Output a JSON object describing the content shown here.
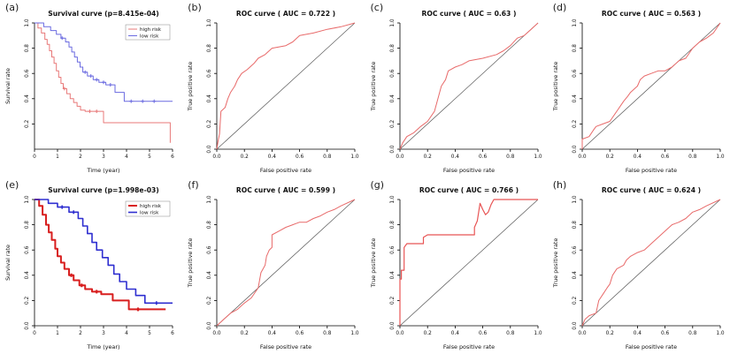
{
  "figure": {
    "background": "#ffffff",
    "diagonal_color": "#555555",
    "axis_color": "#000000"
  },
  "chart_data": [
    {
      "id": "a",
      "panel_label": "(a)",
      "type": "line",
      "subtype": "survival-step",
      "title": "Survival curve (p=8.415e-04)",
      "p_value": "8.415e-04",
      "xlabel": "Time (year)",
      "ylabel": "Survival rate",
      "xlim": [
        0,
        6
      ],
      "ylim": [
        0,
        1.0
      ],
      "step": true,
      "diagonal": false,
      "xticks": [
        0,
        1,
        2,
        3,
        4,
        5,
        6
      ],
      "xtick_labels": [
        "0",
        "1",
        "2",
        "3",
        "4",
        "5",
        "6"
      ],
      "yticks": [
        0.2,
        0.4,
        0.6,
        0.8,
        1.0
      ],
      "ytick_labels": [
        "0.2",
        "0.4",
        "0.6",
        "0.8",
        "1.0"
      ],
      "legend": [
        {
          "label": "high risk",
          "color": "#e87878",
          "width": 1
        },
        {
          "label": "low risk",
          "color": "#6a6ae0",
          "width": 1
        }
      ],
      "series": [
        {
          "name": "high risk",
          "color": "#e87878",
          "width": 1,
          "x": [
            0,
            0.15,
            0.3,
            0.45,
            0.55,
            0.65,
            0.75,
            0.85,
            0.95,
            1.05,
            1.15,
            1.25,
            1.4,
            1.55,
            1.7,
            1.85,
            2.0,
            2.2,
            3.0,
            5.5,
            5.9
          ],
          "y": [
            1.0,
            0.96,
            0.92,
            0.87,
            0.83,
            0.78,
            0.73,
            0.68,
            0.62,
            0.57,
            0.52,
            0.48,
            0.44,
            0.4,
            0.37,
            0.34,
            0.31,
            0.3,
            0.21,
            0.21,
            0.05
          ],
          "censors": [
            [
              2.4,
              0.3
            ],
            [
              2.7,
              0.3
            ],
            [
              1.3,
              0.48
            ]
          ]
        },
        {
          "name": "low risk",
          "color": "#6a6ae0",
          "width": 1,
          "x": [
            0,
            0.4,
            0.7,
            0.95,
            1.15,
            1.35,
            1.5,
            1.62,
            1.74,
            1.86,
            1.98,
            2.1,
            2.3,
            2.55,
            2.8,
            3.1,
            3.5,
            3.9,
            6.0
          ],
          "y": [
            1.0,
            0.97,
            0.94,
            0.91,
            0.88,
            0.85,
            0.81,
            0.77,
            0.73,
            0.69,
            0.65,
            0.61,
            0.58,
            0.55,
            0.53,
            0.51,
            0.45,
            0.38,
            0.38
          ],
          "censors": [
            [
              1.2,
              0.88
            ],
            [
              2.2,
              0.61
            ],
            [
              2.45,
              0.58
            ],
            [
              2.7,
              0.55
            ],
            [
              3.0,
              0.53
            ],
            [
              3.3,
              0.51
            ],
            [
              4.2,
              0.38
            ],
            [
              4.7,
              0.38
            ],
            [
              5.2,
              0.38
            ]
          ]
        }
      ]
    },
    {
      "id": "b",
      "panel_label": "(b)",
      "type": "line",
      "subtype": "roc",
      "title": "ROC curve ( AUC =  0.722 )",
      "auc": 0.722,
      "xlabel": "False positive rate",
      "ylabel": "True positive rate",
      "xlim": [
        0,
        1
      ],
      "ylim": [
        0,
        1
      ],
      "step": false,
      "diagonal": true,
      "xticks": [
        0,
        0.2,
        0.4,
        0.6,
        0.8,
        1.0
      ],
      "xtick_labels": [
        "0.0",
        "0.2",
        "0.4",
        "0.6",
        "0.8",
        "1.0"
      ],
      "yticks": [
        0,
        0.2,
        0.4,
        0.6,
        0.8,
        1.0
      ],
      "ytick_labels": [
        "0.0",
        "0.2",
        "0.4",
        "0.6",
        "0.8",
        "1.0"
      ],
      "series": [
        {
          "name": "ROC",
          "color": "#e86a6a",
          "width": 1,
          "x": [
            0,
            0.01,
            0.02,
            0.03,
            0.06,
            0.08,
            0.1,
            0.13,
            0.15,
            0.18,
            0.22,
            0.27,
            0.3,
            0.35,
            0.4,
            0.5,
            0.55,
            0.6,
            0.7,
            0.8,
            0.9,
            1.0
          ],
          "y": [
            0,
            0.07,
            0.12,
            0.3,
            0.33,
            0.4,
            0.45,
            0.5,
            0.55,
            0.6,
            0.63,
            0.68,
            0.72,
            0.75,
            0.8,
            0.82,
            0.85,
            0.9,
            0.92,
            0.95,
            0.97,
            1.0
          ]
        }
      ]
    },
    {
      "id": "c",
      "panel_label": "(c)",
      "type": "line",
      "subtype": "roc",
      "title": "ROC curve ( AUC =  0.63 )",
      "auc": 0.63,
      "xlabel": "False positive rate",
      "ylabel": "True positive rate",
      "xlim": [
        0,
        1
      ],
      "ylim": [
        0,
        1
      ],
      "step": false,
      "diagonal": true,
      "xticks": [
        0,
        0.2,
        0.4,
        0.6,
        0.8,
        1.0
      ],
      "xtick_labels": [
        "0.0",
        "0.2",
        "0.4",
        "0.6",
        "0.8",
        "1.0"
      ],
      "yticks": [
        0,
        0.2,
        0.4,
        0.6,
        0.8,
        1.0
      ],
      "ytick_labels": [
        "0.0",
        "0.2",
        "0.4",
        "0.6",
        "0.8",
        "1.0"
      ],
      "series": [
        {
          "name": "ROC",
          "color": "#e86a6a",
          "width": 1,
          "x": [
            0,
            0.02,
            0.05,
            0.1,
            0.15,
            0.2,
            0.25,
            0.28,
            0.3,
            0.33,
            0.35,
            0.4,
            0.45,
            0.5,
            0.6,
            0.7,
            0.75,
            0.8,
            0.85,
            0.9,
            0.95,
            1.0
          ],
          "y": [
            0,
            0.05,
            0.1,
            0.13,
            0.18,
            0.22,
            0.3,
            0.42,
            0.5,
            0.55,
            0.62,
            0.65,
            0.67,
            0.7,
            0.72,
            0.75,
            0.78,
            0.82,
            0.88,
            0.9,
            0.95,
            1.0
          ]
        }
      ]
    },
    {
      "id": "d",
      "panel_label": "(d)",
      "type": "line",
      "subtype": "roc",
      "title": "ROC curve ( AUC =  0.563 )",
      "auc": 0.563,
      "xlabel": "False positive rate",
      "ylabel": "True positive rate",
      "xlim": [
        0,
        1
      ],
      "ylim": [
        0,
        1
      ],
      "step": false,
      "diagonal": true,
      "xticks": [
        0,
        0.2,
        0.4,
        0.6,
        0.8,
        1.0
      ],
      "xtick_labels": [
        "0.0",
        "0.2",
        "0.4",
        "0.6",
        "0.8",
        "1.0"
      ],
      "yticks": [
        0,
        0.2,
        0.4,
        0.6,
        0.8,
        1.0
      ],
      "ytick_labels": [
        "0.0",
        "0.2",
        "0.4",
        "0.6",
        "0.8",
        "1.0"
      ],
      "series": [
        {
          "name": "ROC",
          "color": "#e86a6a",
          "width": 1,
          "x": [
            0,
            0,
            0.05,
            0.08,
            0.1,
            0.15,
            0.2,
            0.25,
            0.3,
            0.33,
            0.35,
            0.4,
            0.42,
            0.45,
            0.5,
            0.55,
            0.6,
            0.65,
            0.7,
            0.75,
            0.8,
            0.85,
            0.9,
            0.95,
            1.0
          ],
          "y": [
            0,
            0.08,
            0.1,
            0.15,
            0.18,
            0.2,
            0.22,
            0.3,
            0.38,
            0.42,
            0.45,
            0.5,
            0.55,
            0.58,
            0.6,
            0.62,
            0.62,
            0.65,
            0.7,
            0.72,
            0.8,
            0.85,
            0.88,
            0.92,
            1.0
          ]
        }
      ]
    },
    {
      "id": "e",
      "panel_label": "(e)",
      "type": "line",
      "subtype": "survival-step",
      "title": "Survival curve (p=1.998e-03)",
      "p_value": "1.998e-03",
      "xlabel": "Time (year)",
      "ylabel": "Survival rate",
      "xlim": [
        0,
        6
      ],
      "ylim": [
        0,
        1.0
      ],
      "step": true,
      "diagonal": false,
      "xticks": [
        0,
        1,
        2,
        3,
        4,
        5,
        6
      ],
      "xtick_labels": [
        "0",
        "1",
        "2",
        "3",
        "4",
        "5",
        "6"
      ],
      "yticks": [
        0,
        0.2,
        0.4,
        0.6,
        0.8,
        1.0
      ],
      "ytick_labels": [
        "0.0",
        "0.2",
        "0.4",
        "0.6",
        "0.8",
        "1.0"
      ],
      "legend": [
        {
          "label": "high risk",
          "color": "#d81f1f",
          "width": 2
        },
        {
          "label": "low risk",
          "color": "#2f2fd0",
          "width": 1.6
        }
      ],
      "series": [
        {
          "name": "high risk",
          "color": "#d81f1f",
          "width": 2,
          "x": [
            0,
            0.2,
            0.35,
            0.5,
            0.62,
            0.75,
            0.9,
            1.0,
            1.15,
            1.3,
            1.5,
            1.7,
            1.95,
            2.2,
            2.5,
            2.9,
            3.4,
            4.1,
            5.7
          ],
          "y": [
            1.0,
            0.95,
            0.88,
            0.8,
            0.74,
            0.68,
            0.61,
            0.55,
            0.5,
            0.45,
            0.4,
            0.36,
            0.32,
            0.29,
            0.27,
            0.25,
            0.2,
            0.13,
            0.13
          ],
          "censors": [
            [
              1.6,
              0.4
            ],
            [
              2.05,
              0.32
            ],
            [
              2.7,
              0.27
            ],
            [
              4.5,
              0.13
            ]
          ]
        },
        {
          "name": "low risk",
          "color": "#2f2fd0",
          "width": 1.6,
          "x": [
            0,
            0.6,
            1.0,
            1.5,
            1.9,
            2.1,
            2.3,
            2.5,
            2.7,
            2.95,
            3.2,
            3.45,
            3.7,
            4.0,
            4.4,
            4.8,
            6.0
          ],
          "y": [
            1.0,
            0.97,
            0.94,
            0.9,
            0.85,
            0.79,
            0.73,
            0.66,
            0.6,
            0.54,
            0.48,
            0.41,
            0.35,
            0.29,
            0.24,
            0.18,
            0.18
          ],
          "censors": [
            [
              1.2,
              0.94
            ],
            [
              1.7,
              0.9
            ],
            [
              5.3,
              0.18
            ]
          ]
        }
      ]
    },
    {
      "id": "f",
      "panel_label": "(f)",
      "type": "line",
      "subtype": "roc",
      "title": "ROC curve ( AUC =  0.599 )",
      "auc": 0.599,
      "xlabel": "False positive rate",
      "ylabel": "True positive rate",
      "xlim": [
        0,
        1
      ],
      "ylim": [
        0,
        1
      ],
      "step": false,
      "diagonal": true,
      "xticks": [
        0,
        0.2,
        0.4,
        0.6,
        0.8,
        1.0
      ],
      "xtick_labels": [
        "0.0",
        "0.2",
        "0.4",
        "0.6",
        "0.8",
        "1.0"
      ],
      "yticks": [
        0,
        0.2,
        0.4,
        0.6,
        0.8,
        1.0
      ],
      "ytick_labels": [
        "0.0",
        "0.2",
        "0.4",
        "0.6",
        "0.8",
        "1.0"
      ],
      "series": [
        {
          "name": "ROC",
          "color": "#e86a6a",
          "width": 1,
          "x": [
            0,
            0.05,
            0.1,
            0.15,
            0.2,
            0.25,
            0.3,
            0.32,
            0.35,
            0.36,
            0.38,
            0.4,
            0.4,
            0.45,
            0.5,
            0.55,
            0.6,
            0.65,
            0.7,
            0.75,
            0.8,
            0.85,
            0.9,
            1.0
          ],
          "y": [
            0,
            0.05,
            0.1,
            0.13,
            0.18,
            0.22,
            0.3,
            0.42,
            0.48,
            0.55,
            0.6,
            0.62,
            0.72,
            0.75,
            0.78,
            0.8,
            0.82,
            0.82,
            0.85,
            0.87,
            0.9,
            0.92,
            0.95,
            1.0
          ]
        }
      ]
    },
    {
      "id": "g",
      "panel_label": "(g)",
      "type": "line",
      "subtype": "roc",
      "title": "ROC curve ( AUC =  0.766 )",
      "auc": 0.766,
      "xlabel": "False positive rate",
      "ylabel": "True positive rate",
      "xlim": [
        0,
        1
      ],
      "ylim": [
        0,
        1
      ],
      "step": false,
      "diagonal": true,
      "xticks": [
        0,
        0.2,
        0.4,
        0.6,
        0.8,
        1.0
      ],
      "xtick_labels": [
        "0.0",
        "0.2",
        "0.4",
        "0.6",
        "0.8",
        "1.0"
      ],
      "yticks": [
        0,
        0.2,
        0.4,
        0.6,
        0.8,
        1.0
      ],
      "ytick_labels": [
        "0.0",
        "0.2",
        "0.4",
        "0.6",
        "0.8",
        "1.0"
      ],
      "series": [
        {
          "name": "ROC",
          "color": "#e85555",
          "width": 1.2,
          "x": [
            0,
            0,
            0.01,
            0.01,
            0.03,
            0.03,
            0.05,
            0.17,
            0.17,
            0.2,
            0.54,
            0.54,
            0.56,
            0.58,
            0.6,
            0.62,
            0.64,
            0.66,
            0.68,
            1.0
          ],
          "y": [
            0,
            0.37,
            0.37,
            0.44,
            0.44,
            0.62,
            0.65,
            0.65,
            0.7,
            0.72,
            0.72,
            0.78,
            0.83,
            0.97,
            0.92,
            0.88,
            0.9,
            0.96,
            1.0,
            1.0
          ]
        }
      ]
    },
    {
      "id": "h",
      "panel_label": "(h)",
      "type": "line",
      "subtype": "roc",
      "title": "ROC curve ( AUC =  0.624 )",
      "auc": 0.624,
      "xlabel": "False positive rate",
      "ylabel": "True positive rate",
      "xlim": [
        0,
        1
      ],
      "ylim": [
        0,
        1
      ],
      "step": false,
      "diagonal": true,
      "xticks": [
        0,
        0.2,
        0.4,
        0.6,
        0.8,
        1.0
      ],
      "xtick_labels": [
        "0.0",
        "0.2",
        "0.4",
        "0.6",
        "0.8",
        "1.0"
      ],
      "yticks": [
        0,
        0.2,
        0.4,
        0.6,
        0.8,
        1.0
      ],
      "ytick_labels": [
        "0.0",
        "0.2",
        "0.4",
        "0.6",
        "0.8",
        "1.0"
      ],
      "series": [
        {
          "name": "ROC",
          "color": "#e86a6a",
          "width": 1,
          "x": [
            0,
            0.02,
            0.05,
            0.1,
            0.12,
            0.15,
            0.18,
            0.2,
            0.22,
            0.25,
            0.3,
            0.32,
            0.35,
            0.4,
            0.45,
            0.5,
            0.55,
            0.6,
            0.65,
            0.7,
            0.75,
            0.8,
            0.85,
            0.9,
            1.0
          ],
          "y": [
            0,
            0.05,
            0.08,
            0.1,
            0.2,
            0.25,
            0.3,
            0.33,
            0.4,
            0.45,
            0.48,
            0.52,
            0.55,
            0.58,
            0.6,
            0.65,
            0.7,
            0.75,
            0.8,
            0.82,
            0.85,
            0.9,
            0.92,
            0.95,
            1.0
          ]
        }
      ]
    }
  ]
}
